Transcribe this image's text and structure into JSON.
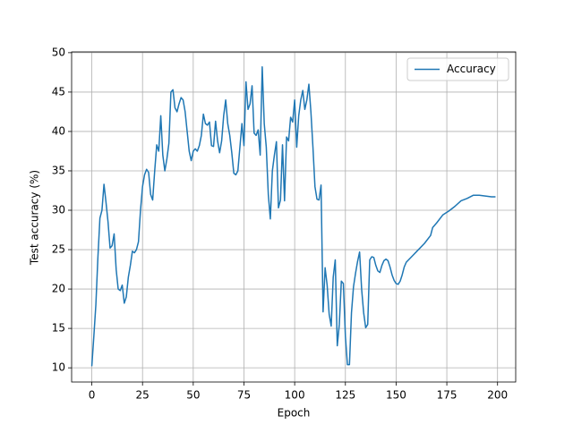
{
  "chart_data": {
    "type": "line",
    "x": [
      0,
      1,
      2,
      3,
      4,
      5,
      6,
      7,
      8,
      9,
      10,
      11,
      12,
      13,
      14,
      15,
      16,
      17,
      18,
      19,
      20,
      21,
      22,
      23,
      24,
      25,
      26,
      27,
      28,
      29,
      30,
      31,
      32,
      33,
      34,
      35,
      36,
      37,
      38,
      39,
      40,
      41,
      42,
      43,
      44,
      45,
      46,
      47,
      48,
      49,
      50,
      51,
      52,
      53,
      54,
      55,
      56,
      57,
      58,
      59,
      60,
      61,
      62,
      63,
      64,
      65,
      66,
      67,
      68,
      69,
      70,
      71,
      72,
      73,
      74,
      75,
      76,
      77,
      78,
      79,
      80,
      81,
      82,
      83,
      84,
      85,
      86,
      87,
      88,
      89,
      90,
      91,
      92,
      93,
      94,
      95,
      96,
      97,
      98,
      99,
      100,
      101,
      102,
      103,
      104,
      105,
      106,
      107,
      108,
      109,
      110,
      111,
      112,
      113,
      114,
      115,
      116,
      117,
      118,
      119,
      120,
      121,
      122,
      123,
      124,
      125,
      126,
      127,
      128,
      129,
      130,
      131,
      132,
      133,
      134,
      135,
      136,
      137,
      138,
      139,
      140,
      141,
      142,
      143,
      144,
      145,
      146,
      147,
      148,
      149,
      150,
      151,
      152,
      153,
      154,
      155,
      158,
      161,
      164,
      167,
      168,
      170,
      173,
      176,
      179,
      182,
      185,
      188,
      191,
      194,
      197,
      199
    ],
    "series": [
      {
        "name": "Accuracy",
        "color": "#1f77b4",
        "values": [
          10.2,
          14,
          18,
          24,
          29,
          30,
          33.3,
          31,
          28.5,
          25.2,
          25.5,
          27,
          22.5,
          20,
          19.8,
          20.5,
          18.2,
          19,
          21.5,
          23,
          24.8,
          24.6,
          25,
          26,
          30,
          33,
          34.5,
          35.2,
          34.8,
          32,
          31.3,
          35,
          38.3,
          37.5,
          42,
          37,
          35,
          36.5,
          38.5,
          45,
          45.3,
          43,
          42.5,
          43.5,
          44.3,
          44,
          42.5,
          40,
          37.5,
          36.3,
          37.5,
          37.8,
          37.5,
          38.2,
          39.5,
          42.2,
          41,
          40.8,
          41.2,
          38.2,
          38.1,
          41.3,
          38.8,
          37.3,
          38.8,
          42,
          44,
          41,
          39.5,
          37.3,
          34.7,
          34.5,
          35,
          38,
          41,
          38.2,
          46.3,
          42.8,
          43.5,
          45.8,
          39.8,
          39.5,
          40.2,
          37,
          48.2,
          41,
          38,
          32,
          28.9,
          35,
          37,
          38.7,
          30.3,
          31.3,
          38.3,
          31.2,
          39.3,
          38.8,
          41.8,
          41.2,
          44,
          38,
          42,
          44,
          45.2,
          42.8,
          44,
          46,
          42.5,
          38,
          33,
          31.4,
          31.3,
          33.2,
          17.1,
          22.7,
          20.5,
          16.8,
          15.3,
          21.5,
          23.7,
          12.8,
          15.5,
          21,
          20.7,
          14,
          10.4,
          10.4,
          17,
          20.3,
          22,
          23.5,
          24.7,
          20,
          17,
          15.1,
          15.5,
          23.7,
          24.1,
          24,
          23,
          22.3,
          22.1,
          23,
          23.6,
          23.8,
          23.6,
          22.8,
          21.8,
          21.1,
          20.7,
          20.6,
          21,
          21.8,
          22.8,
          23.4,
          24.2,
          25,
          25.8,
          26.8,
          27.8,
          28.4,
          29.4,
          29.9,
          30.5,
          31.2,
          31.5,
          31.9,
          31.9,
          31.8,
          31.7,
          31.7
        ]
      }
    ],
    "xlabel": "Epoch",
    "ylabel": "Test accuracy (%)",
    "xlim": [
      -9.95,
      208.95
    ],
    "ylim": [
      8.2,
      50.1
    ],
    "xticks": [
      0,
      25,
      50,
      75,
      100,
      125,
      150,
      175,
      200
    ],
    "yticks": [
      10,
      15,
      20,
      25,
      30,
      35,
      40,
      45,
      50
    ],
    "grid": true,
    "legend": "upper right"
  }
}
